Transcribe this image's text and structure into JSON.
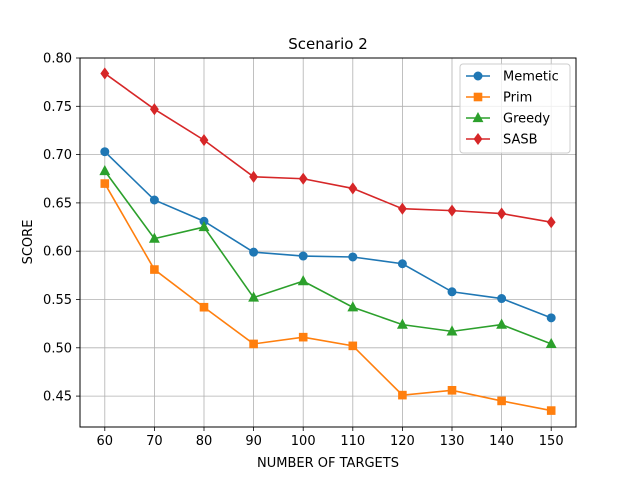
{
  "chart_data": {
    "type": "line",
    "title": "Scenario 2",
    "xlabel": "NUMBER OF TARGETS",
    "ylabel": "SCORE",
    "x": [
      60,
      70,
      80,
      90,
      100,
      110,
      120,
      130,
      140,
      150
    ],
    "xticks": [
      "60",
      "70",
      "80",
      "90",
      "100",
      "110",
      "120",
      "130",
      "140",
      "150"
    ],
    "xlim": [
      55,
      155
    ],
    "ylim": [
      0.418,
      0.8
    ],
    "yticks": [
      "0.45",
      "0.50",
      "0.55",
      "0.60",
      "0.65",
      "0.70",
      "0.75",
      "0.80"
    ],
    "grid": true,
    "legend_position": "top-right",
    "series": [
      {
        "name": "Memetic",
        "color": "#1f77b4",
        "marker": "circle",
        "values": [
          0.703,
          0.653,
          0.631,
          0.599,
          0.595,
          0.594,
          0.587,
          0.558,
          0.551,
          0.531
        ]
      },
      {
        "name": "Prim",
        "color": "#ff7f0e",
        "marker": "square",
        "values": [
          0.67,
          0.581,
          0.542,
          0.504,
          0.511,
          0.502,
          0.451,
          0.456,
          0.445,
          0.435
        ]
      },
      {
        "name": "Greedy",
        "color": "#2ca02c",
        "marker": "triangle",
        "values": [
          0.683,
          0.613,
          0.625,
          0.552,
          0.569,
          0.542,
          0.524,
          0.517,
          0.524,
          0.504
        ]
      },
      {
        "name": "SASB",
        "color": "#d62728",
        "marker": "diamond",
        "values": [
          0.784,
          0.747,
          0.715,
          0.677,
          0.675,
          0.665,
          0.644,
          0.642,
          0.639,
          0.63
        ]
      }
    ]
  }
}
